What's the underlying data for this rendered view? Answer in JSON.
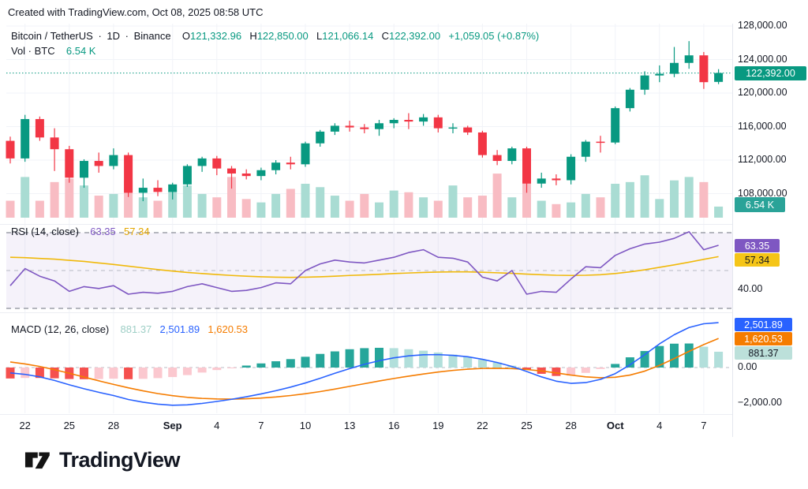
{
  "header": {
    "credit": "Created with TradingView.com, Oct 08, 2025 08:58 UTC"
  },
  "legend": {
    "symbol": "Bitcoin / TetherUS",
    "sep1": "·",
    "interval": "1D",
    "sep2": "·",
    "exchange": "Binance",
    "o_label": "O",
    "o_value": "121,332.96",
    "h_label": "H",
    "h_value": "122,850.00",
    "l_label": "L",
    "l_value": "121,066.14",
    "c_label": "C",
    "c_value": "122,392.00",
    "change": "+1,059.05 (+0.87%)",
    "vol_label": "Vol · BTC",
    "vol_value": "6.54 K"
  },
  "rsi_panel": {
    "label": "RSI (14, close)",
    "value_main": "63.35",
    "value_ma": "57.34",
    "axis_40": "40.00"
  },
  "macd_panel": {
    "label": "MACD (12, 26, close)",
    "hist_value": "881.37",
    "macd_value": "2,501.89",
    "signal_value": "1,620.53",
    "axis_zero": "0.00",
    "axis_neg2000": "−2,000.00"
  },
  "price_scale": {
    "labels": [
      "128,000.00",
      "124,000.00",
      "120,000.00",
      "116,000.00",
      "112,000.00",
      "108,000.00"
    ],
    "values": [
      128000,
      124000,
      120000,
      116000,
      112000,
      108000
    ],
    "current_badge": "122,392.00",
    "volume_badge": "6.54 K"
  },
  "time_scale": {
    "labels": [
      "22",
      "25",
      "28",
      "Sep",
      "4",
      "7",
      "10",
      "13",
      "16",
      "19",
      "22",
      "25",
      "28",
      "Oct",
      "4",
      "7"
    ],
    "candle_indices": [
      1,
      4,
      7,
      11,
      14,
      17,
      20,
      23,
      26,
      29,
      32,
      35,
      38,
      41,
      44,
      47
    ],
    "bold_labels": [
      "Sep",
      "Oct"
    ]
  },
  "footer": {
    "brand": "TradingView"
  },
  "colors": {
    "up": "#089981",
    "down": "#f23645",
    "vol_up": "#a9dcd3",
    "vol_down": "#f8bcc3",
    "rsi": "#7e57c2",
    "rsi_ma": "#f0b90b",
    "macd": "#2962ff",
    "signal": "#f57c00",
    "hist_pos": "#26a69a",
    "hist_pos_weak": "#b2dfdb",
    "hist_neg": "#f5504e",
    "hist_neg_weak": "#fbc8cf",
    "badge_price": "#089981",
    "badge_vol": "#2aa398",
    "badge_rsi": "#7e57c2",
    "badge_rsima": "#f5c518",
    "badge_macd": "#2962ff",
    "badge_signal": "#f57c00",
    "badge_hist": "#bce0da",
    "grid": "#f1f3f8",
    "dashed": "#8a8e99",
    "dashed_mid": "#b8bbc4",
    "rsi_band": "rgba(126,87,194,0.08)"
  },
  "chart_data": {
    "type": "candlestick",
    "title": "Bitcoin / TetherUS · 1D · Binance",
    "last_price": 122392.0,
    "last_volume_k": 6.54,
    "y_axis": {
      "range": [
        106500,
        128300
      ],
      "gridlines": [
        128000,
        124000,
        120000,
        116000,
        112000,
        108000
      ]
    },
    "candles": {
      "open": [
        114300,
        112200,
        116900,
        114700,
        113300,
        109900,
        111900,
        111300,
        112600,
        108100,
        108700,
        108200,
        109100,
        111300,
        112200,
        111000,
        110400,
        110100,
        110800,
        111700,
        111500,
        114000,
        115400,
        116100,
        115900,
        115700,
        116400,
        116800,
        116600,
        117100,
        115800,
        115900,
        115300,
        112600,
        111900,
        113400,
        109200,
        109800,
        109600,
        112400,
        114200,
        114100,
        118200,
        120400,
        122100,
        122300,
        123600,
        124500,
        121333
      ],
      "high": [
        114800,
        117400,
        117200,
        115800,
        113700,
        112100,
        112900,
        113400,
        112900,
        109800,
        109600,
        109300,
        111500,
        112400,
        112500,
        111300,
        110900,
        111100,
        112000,
        112400,
        114200,
        115600,
        116400,
        116700,
        116300,
        116800,
        117000,
        117600,
        117500,
        117400,
        116400,
        116100,
        115500,
        113200,
        113600,
        113600,
        110500,
        110300,
        112700,
        114400,
        114900,
        118400,
        120600,
        122600,
        123300,
        125500,
        126200,
        124900,
        122850
      ],
      "low": [
        111600,
        111800,
        114300,
        110700,
        109300,
        108700,
        110500,
        110900,
        107600,
        107100,
        107700,
        107300,
        108800,
        110600,
        110200,
        108600,
        109700,
        109600,
        110300,
        110900,
        111200,
        113600,
        115000,
        115400,
        115200,
        114900,
        115800,
        115700,
        116100,
        115300,
        115200,
        115000,
        112300,
        111400,
        111500,
        108100,
        108700,
        109000,
        109100,
        111800,
        112900,
        113900,
        117800,
        119800,
        121300,
        121900,
        122900,
        120500,
        121066
      ],
      "close": [
        112200,
        116900,
        114700,
        113300,
        109900,
        111900,
        111300,
        112600,
        108100,
        108700,
        108200,
        109100,
        111300,
        112200,
        111000,
        110400,
        110100,
        110800,
        111700,
        111500,
        114000,
        115400,
        116100,
        115900,
        115700,
        116400,
        116800,
        116600,
        117100,
        115800,
        115900,
        115300,
        112600,
        111900,
        113400,
        109200,
        109800,
        109600,
        112400,
        114200,
        114100,
        118200,
        120400,
        122100,
        122300,
        123600,
        124500,
        121300,
        122392
      ]
    },
    "volume_k": [
      10,
      24,
      10,
      21,
      23,
      19,
      13,
      14,
      22,
      12,
      10,
      16,
      19,
      14,
      12,
      24,
      11,
      9,
      14,
      17,
      20,
      18,
      13,
      10,
      14,
      9,
      16,
      15,
      12,
      10,
      19,
      12,
      13,
      26,
      12,
      21,
      10,
      8,
      9,
      14,
      12,
      20,
      21,
      25,
      11,
      22,
      24,
      21,
      6.54
    ],
    "indicators": {
      "rsi": {
        "params": "14, close",
        "levels": [
          70,
          50,
          30
        ],
        "current": 63.35,
        "ma_current": 57.34,
        "line": [
          42,
          51,
          47,
          44.5,
          39,
          41.5,
          40.5,
          42,
          37.5,
          38.5,
          38,
          39,
          41.5,
          43,
          41,
          39,
          39.5,
          41,
          43.5,
          43,
          50,
          53.5,
          55.5,
          54.5,
          54,
          55.5,
          57,
          59.5,
          61,
          57,
          56.5,
          54.5,
          46.5,
          44.5,
          50,
          37.5,
          39,
          38.5,
          45.5,
          52,
          51.5,
          58,
          61.5,
          64,
          65,
          67,
          70.5,
          61,
          63.35
        ],
        "ma": [
          57,
          56.8,
          56.4,
          56,
          55.4,
          54.8,
          54,
          53.2,
          52.3,
          51.4,
          50.5,
          49.7,
          49,
          48.4,
          47.9,
          47.4,
          47,
          46.7,
          46.5,
          46.4,
          46.5,
          46.7,
          47,
          47.4,
          47.7,
          48,
          48.4,
          48.7,
          49,
          49.2,
          49.3,
          49.3,
          49.1,
          48.8,
          48.5,
          48.1,
          47.8,
          47.5,
          47.4,
          47.5,
          47.8,
          48.4,
          49.3,
          50.4,
          51.7,
          53,
          54.4,
          55.9,
          57.34
        ]
      },
      "macd": {
        "params": "12, 26, close",
        "current": {
          "macd": 2501.89,
          "signal": 1620.53,
          "histogram": 881.37
        },
        "macd_line": [
          -300,
          -380,
          -520,
          -720,
          -960,
          -1180,
          -1380,
          -1560,
          -1780,
          -1930,
          -2040,
          -2100,
          -2080,
          -2000,
          -1890,
          -1770,
          -1630,
          -1470,
          -1290,
          -1090,
          -860,
          -600,
          -320,
          -60,
          180,
          380,
          540,
          650,
          710,
          720,
          680,
          600,
          460,
          280,
          60,
          -220,
          -520,
          -760,
          -880,
          -840,
          -660,
          -340,
          150,
          720,
          1320,
          1830,
          2230,
          2440,
          2501.89
        ],
        "signal_line": [
          310,
          200,
          60,
          -120,
          -320,
          -530,
          -740,
          -940,
          -1130,
          -1300,
          -1450,
          -1570,
          -1660,
          -1720,
          -1750,
          -1760,
          -1740,
          -1700,
          -1640,
          -1560,
          -1460,
          -1340,
          -1200,
          -1050,
          -900,
          -750,
          -610,
          -480,
          -360,
          -250,
          -160,
          -90,
          -50,
          -40,
          -60,
          -110,
          -190,
          -300,
          -420,
          -520,
          -570,
          -540,
          -420,
          -200,
          120,
          500,
          900,
          1280,
          1620.53
        ],
        "histogram": [
          -610,
          -580,
          -580,
          -600,
          -640,
          -650,
          -640,
          -620,
          -650,
          -630,
          -590,
          -530,
          -420,
          -280,
          -140,
          -10,
          110,
          230,
          350,
          470,
          600,
          760,
          900,
          1020,
          1080,
          1100,
          1080,
          1020,
          940,
          840,
          720,
          590,
          440,
          280,
          100,
          -130,
          -350,
          -470,
          -450,
          -300,
          -80,
          200,
          570,
          920,
          1200,
          1330,
          1340,
          1160,
          881.37
        ]
      }
    }
  }
}
